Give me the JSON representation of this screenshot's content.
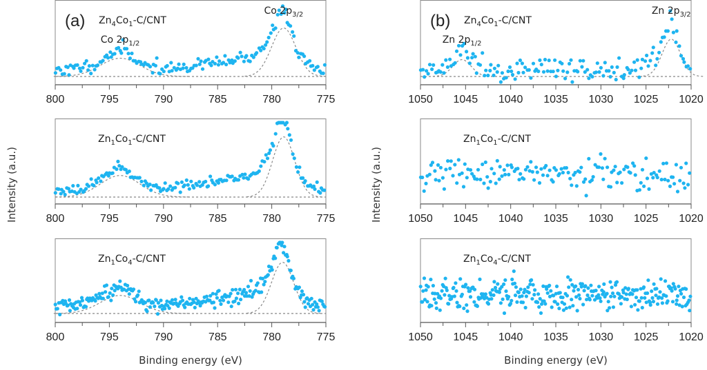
{
  "figure": {
    "ylabel": "Intensity (a.u.)",
    "xlabel": "Binding energy (eV)",
    "point_color": "#1eb4f0",
    "fit_color": "#888888"
  },
  "chart_data": [
    {
      "type": "scatter",
      "panel": "a",
      "panel_label": "(a)",
      "sample": {
        "base": "Zn",
        "sub1": "4",
        "mid": "Co",
        "sub2": "1",
        "tail": "-C/CNT"
      },
      "xlim": [
        800,
        775
      ],
      "xticks": [
        "800",
        "795",
        "790",
        "785",
        "780",
        "775"
      ],
      "xlabel": "",
      "ylabel": "Intensity (a.u.)",
      "peaks": [
        {
          "name": "Co 2p",
          "sub": "1/2",
          "position": 794.0,
          "height": 0.32,
          "width": 1.8
        },
        {
          "name": "Co 2p",
          "sub": "3/2",
          "position": 778.9,
          "height": 0.85,
          "width": 1.1
        }
      ],
      "background": {
        "level": 0.0,
        "slope": 0.0
      },
      "noise": 0.05,
      "shoulder": {
        "start": 790,
        "end": 779.5,
        "height": 0.25
      },
      "n_points": 160,
      "seed": 11
    },
    {
      "type": "scatter",
      "panel": "a",
      "panel_label": "",
      "sample": {
        "base": "Zn",
        "sub1": "1",
        "mid": "Co",
        "sub2": "1",
        "tail": "-C/CNT"
      },
      "xlim": [
        800,
        775
      ],
      "xticks": [
        "800",
        "795",
        "790",
        "785",
        "780",
        "775"
      ],
      "xlabel": "",
      "peaks": [
        {
          "name": "",
          "sub": "",
          "position": 794.0,
          "height": 0.34,
          "width": 1.8
        },
        {
          "name": "",
          "sub": "",
          "position": 778.9,
          "height": 0.95,
          "width": 1.0
        }
      ],
      "background": {
        "level": 0.0,
        "slope": 0.0
      },
      "noise": 0.035,
      "shoulder": {
        "start": 790,
        "end": 779.5,
        "height": 0.27
      },
      "n_points": 170,
      "seed": 23
    },
    {
      "type": "scatter",
      "panel": "a",
      "panel_label": "",
      "sample": {
        "base": "Zn",
        "sub1": "1",
        "mid": "Co",
        "sub2": "4",
        "tail": "-C/CNT"
      },
      "xlim": [
        800,
        775
      ],
      "xticks": [
        "800",
        "795",
        "790",
        "785",
        "780",
        "775"
      ],
      "xlabel": "Binding energy (eV)",
      "peaks": [
        {
          "name": "",
          "sub": "",
          "position": 794.0,
          "height": 0.3,
          "width": 1.8
        },
        {
          "name": "",
          "sub": "",
          "position": 779.0,
          "height": 0.85,
          "width": 1.0
        }
      ],
      "background": {
        "level": 0.0,
        "slope": 0.0
      },
      "noise": 0.06,
      "shoulder": {
        "start": 790,
        "end": 779.5,
        "height": 0.25
      },
      "n_points": 260,
      "seed": 37
    },
    {
      "type": "scatter",
      "panel": "b",
      "panel_label": "(b)",
      "sample": {
        "base": "Zn",
        "sub1": "4",
        "mid": "Co",
        "sub2": "1",
        "tail": "-C/CNT"
      },
      "xlim": [
        1050,
        1020
      ],
      "xticks": [
        "1050",
        "1045",
        "1040",
        "1035",
        "1030",
        "1025",
        "1020"
      ],
      "xlabel": "",
      "peaks": [
        {
          "name": "Zn 2p",
          "sub": "1/2",
          "position": 1045.4,
          "height": 0.28,
          "width": 1.0
        },
        {
          "name": "Zn 2p",
          "sub": "3/2",
          "position": 1022.2,
          "height": 0.62,
          "width": 1.0
        }
      ],
      "background": {
        "level": 0.1,
        "slope": 0.0
      },
      "noise": 0.08,
      "shoulder": {
        "start": 1026,
        "end": 1023,
        "height": 0.18
      },
      "n_points": 150,
      "seed": 51
    },
    {
      "type": "scatter",
      "panel": "b",
      "panel_label": "",
      "sample": {
        "base": "Zn",
        "sub1": "1",
        "mid": "Co",
        "sub2": "1",
        "tail": "-C/CNT"
      },
      "xlim": [
        1050,
        1020
      ],
      "xticks": [
        "1050",
        "1045",
        "1040",
        "1035",
        "1030",
        "1025",
        "1020"
      ],
      "xlabel": "",
      "peaks": [],
      "background": {
        "level": 0.62,
        "slope": 0.0
      },
      "noise": 0.2,
      "shoulder": null,
      "n_points": 160,
      "seed": 67
    },
    {
      "type": "scatter",
      "panel": "b",
      "panel_label": "",
      "sample": {
        "base": "Zn",
        "sub1": "1",
        "mid": "Co",
        "sub2": "4",
        "tail": "-C/CNT"
      },
      "xlim": [
        1050,
        1020
      ],
      "xticks": [
        "1050",
        "1045",
        "1040",
        "1035",
        "1030",
        "1025",
        "1020"
      ],
      "xlabel": "Binding energy (eV)",
      "peaks": [],
      "background": {
        "level": 0.55,
        "slope": 0.0
      },
      "noise": 0.2,
      "shoulder": null,
      "n_points": 320,
      "seed": 79
    }
  ]
}
